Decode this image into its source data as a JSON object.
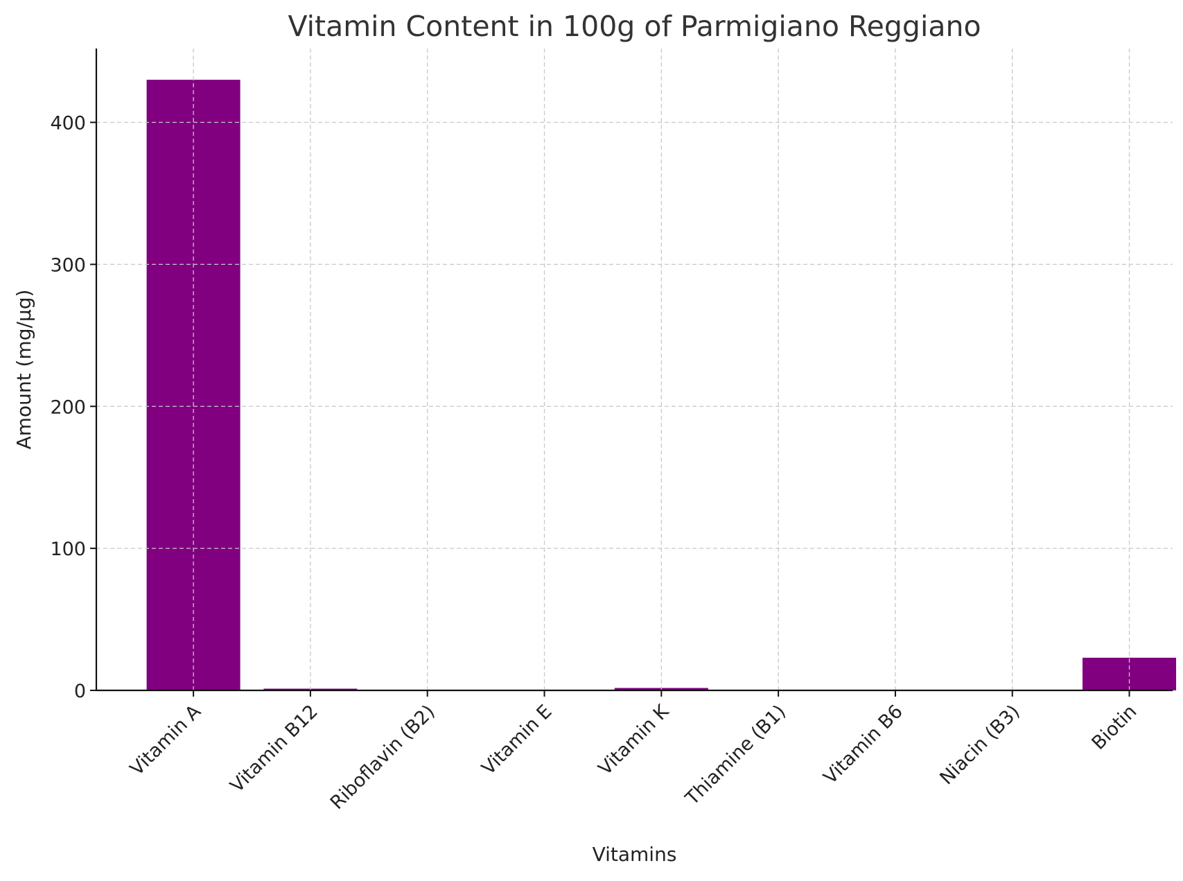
{
  "chart_data": {
    "type": "bar",
    "title": "Vitamin Content in 100g of Parmigiano Reggiano",
    "xlabel": "Vitamins",
    "ylabel": "Amount (mg/µg)",
    "categories": [
      "Vitamin A",
      "Vitamin B12",
      "Riboflavin (B2)",
      "Vitamin E",
      "Vitamin K",
      "Thiamine (B1)",
      "Vitamin B6",
      "Niacin (B3)",
      "Biotin"
    ],
    "values": [
      430,
      1.2,
      0.3,
      0.2,
      1.7,
      0.04,
      0.09,
      0.1,
      23
    ],
    "ylim": [
      0,
      452
    ],
    "yticks": [
      0,
      100,
      200,
      300,
      400
    ],
    "grid": true,
    "bar_color": "#800080"
  }
}
